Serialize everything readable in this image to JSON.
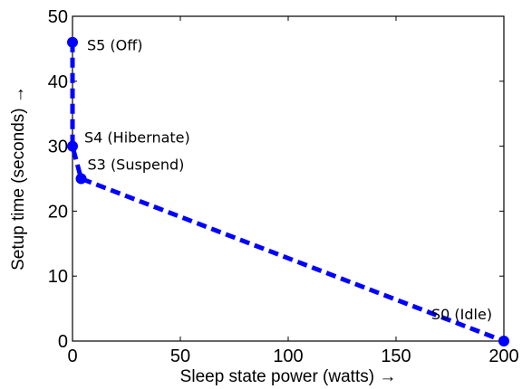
{
  "chart_data": {
    "type": "line",
    "title": "",
    "xlabel": "Sleep state power (watts) →",
    "ylabel": "Setup time (seconds) →",
    "xlim": [
      0,
      200
    ],
    "ylim": [
      0,
      50
    ],
    "x_ticks": [
      0,
      50,
      100,
      150,
      200
    ],
    "y_ticks": [
      0,
      10,
      20,
      30,
      40,
      50
    ],
    "grid": false,
    "line_color": "#0000ff",
    "line_style": "dashed",
    "marker": "circle",
    "series": [
      {
        "points": [
          {
            "label": "S5 (Off)",
            "x": 0,
            "y": 46
          },
          {
            "label": "S4 (Hibernate)",
            "x": 0,
            "y": 30
          },
          {
            "label": "S3 (Suspend)",
            "x": 4,
            "y": 25
          },
          {
            "label": "S0 (Idle)",
            "x": 200,
            "y": 0
          }
        ]
      }
    ]
  }
}
